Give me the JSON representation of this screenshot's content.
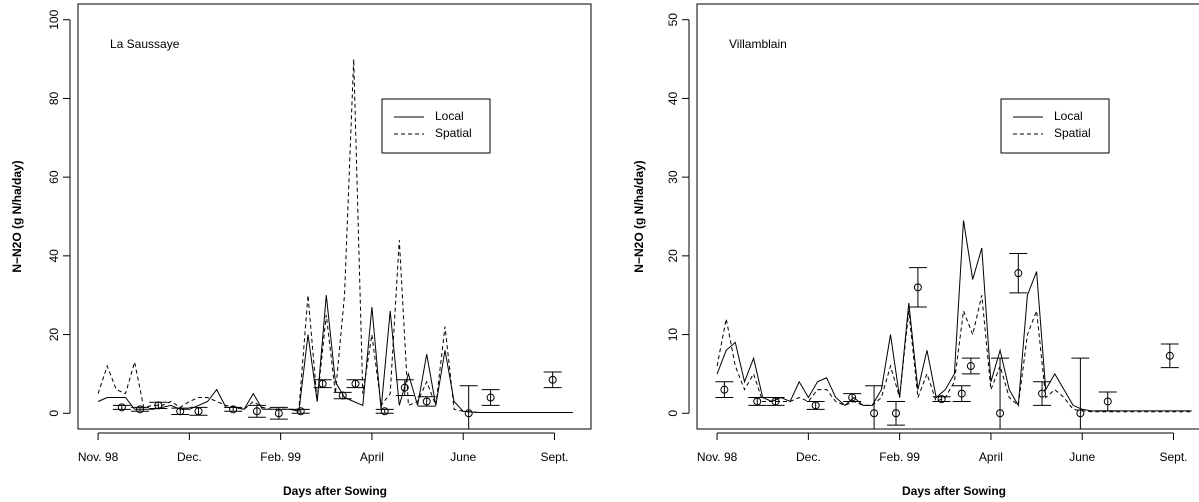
{
  "chart_data": [
    {
      "type": "line",
      "annotation": "La Saussaye",
      "xlabel": "Days after Sowing",
      "ylabel": "N−N2O (g N/ha/day)",
      "legend": "center right",
      "x": [
        0,
        5,
        10,
        15,
        20,
        25,
        30,
        35,
        40,
        45,
        50,
        55,
        60,
        65,
        70,
        75,
        80,
        85,
        90,
        95,
        100,
        105,
        110,
        115,
        120,
        125,
        130,
        135,
        140,
        145,
        150,
        155,
        160,
        165,
        170,
        175,
        180,
        185,
        190,
        195,
        200,
        205,
        210,
        215,
        220,
        225,
        230,
        235,
        240,
        245,
        250,
        255,
        260
      ],
      "series": [
        {
          "name": "Local",
          "color": "#000000",
          "line_style": "solid",
          "values": [
            3,
            4,
            4,
            4,
            1,
            1,
            1,
            1.5,
            2,
            1,
            1,
            2,
            3,
            6,
            1.5,
            1.5,
            1,
            5,
            1,
            1,
            1,
            1,
            0.5,
            20,
            3,
            30,
            8,
            4,
            3,
            2,
            27,
            1,
            26,
            2,
            10,
            2,
            15,
            2,
            16,
            3,
            0.5,
            0.3,
            0.2,
            0.2,
            0.2,
            0.2,
            0.2,
            0.2,
            0.2,
            0.2,
            0.2,
            0.2,
            0.2
          ]
        },
        {
          "name": "Spatial",
          "color": "#000000",
          "line_style": "dashed",
          "values": [
            5,
            12,
            6,
            5,
            13,
            1.5,
            2,
            2,
            3,
            1.5,
            3,
            4,
            4,
            3,
            2,
            1.5,
            1,
            3,
            1.5,
            1,
            1,
            1,
            1,
            30,
            3,
            25,
            5,
            30,
            90,
            5,
            20,
            2,
            5,
            44,
            2,
            3,
            8,
            2,
            22,
            1,
            0.5,
            0.3,
            0.2,
            0.2,
            0.2,
            0.2,
            0.2,
            0.2,
            0.2,
            0.2,
            0.2,
            0.2,
            0.2
          ]
        }
      ],
      "observed": {
        "x": [
          13,
          23,
          33,
          45,
          55,
          74,
          87,
          99,
          111,
          123,
          134,
          141,
          157,
          168,
          180,
          203,
          215,
          249
        ],
        "values": [
          1.5,
          1,
          2,
          0.5,
          0.5,
          1,
          0.5,
          0,
          0.5,
          7.5,
          4.5,
          7.5,
          0.5,
          6.5,
          3,
          0,
          4,
          8.5
        ],
        "errors": [
          0.5,
          0.5,
          0.8,
          0.8,
          1,
          0.5,
          1.5,
          1.5,
          0.5,
          1,
          0.8,
          1,
          0.5,
          2,
          1.2,
          7,
          2,
          2
        ]
      },
      "xlim": [
        -11,
        270
      ],
      "ylim": [
        -4,
        104
      ],
      "xticks": [
        {
          "value": 0,
          "label": "Nov. 98"
        },
        {
          "value": 50,
          "label": "Dec."
        },
        {
          "value": 100,
          "label": "Feb. 99"
        },
        {
          "value": 150,
          "label": "April"
        },
        {
          "value": 200,
          "label": "June"
        },
        {
          "value": 250,
          "label": "Sept."
        }
      ],
      "yticks": [
        0,
        20,
        40,
        60,
        80,
        100
      ]
    },
    {
      "type": "line",
      "annotation": "Villamblain",
      "xlabel": "Days after Sowing",
      "ylabel": "N−N2O (g N/ha/day)",
      "legend": "center right",
      "x": [
        0,
        5,
        10,
        15,
        20,
        25,
        30,
        35,
        40,
        45,
        50,
        55,
        60,
        65,
        70,
        75,
        80,
        85,
        90,
        95,
        100,
        105,
        110,
        115,
        120,
        125,
        130,
        135,
        140,
        145,
        150,
        155,
        160,
        165,
        170,
        175,
        180,
        185,
        190,
        195,
        200,
        205,
        210,
        215,
        220,
        225,
        230,
        235,
        240,
        245,
        250,
        255,
        260
      ],
      "series": [
        {
          "name": "Local",
          "color": "#000000",
          "line_style": "solid",
          "values": [
            5,
            8,
            9,
            4,
            7,
            2,
            1.5,
            2,
            1.5,
            4,
            2,
            4,
            4.5,
            2,
            1,
            2,
            1,
            1,
            3,
            10,
            2,
            14,
            3,
            8,
            2,
            3,
            5,
            24.5,
            17,
            21,
            4,
            8,
            3,
            1,
            15,
            18,
            3,
            5,
            3,
            1,
            0.5,
            0.3,
            0.3,
            0.3,
            0.3,
            0.3,
            0.3,
            0.3,
            0.3,
            0.3,
            0.3,
            0.3,
            0.3
          ]
        },
        {
          "name": "Spatial",
          "color": "#000000",
          "line_style": "dashed",
          "values": [
            6,
            12,
            6,
            3,
            5,
            1.5,
            1.5,
            1.5,
            1.5,
            2,
            1.5,
            3,
            3,
            1.5,
            1,
            1.5,
            1,
            1,
            2,
            6,
            2,
            13,
            2,
            5,
            1.5,
            2,
            4,
            13,
            10,
            15,
            3,
            6,
            2,
            1,
            10,
            13,
            2,
            3,
            2,
            0.5,
            0.3,
            0.2,
            0.2,
            0.2,
            0.2,
            0.2,
            0.2,
            0.2,
            0.2,
            0.2,
            0.2,
            0.2,
            0.2
          ]
        }
      ],
      "observed": {
        "x": [
          4,
          22,
          32,
          54,
          74,
          86,
          98,
          110,
          123,
          134,
          139,
          155,
          165,
          178,
          199,
          214,
          248
        ],
        "values": [
          3,
          1.5,
          1.5,
          1,
          2,
          0,
          0,
          16,
          1.8,
          2.5,
          6,
          0,
          17.8,
          2.5,
          0,
          1.5,
          7.3
        ],
        "errors": [
          1,
          0.5,
          0.5,
          0.5,
          0.5,
          3.5,
          1.5,
          2.5,
          0.3,
          1,
          1,
          7,
          2.5,
          1.5,
          7,
          1.2,
          1.5
        ]
      },
      "xlim": [
        -11,
        270
      ],
      "ylim": [
        -2,
        52
      ],
      "xticks": [
        {
          "value": 0,
          "label": "Nov. 98"
        },
        {
          "value": 50,
          "label": "Dec."
        },
        {
          "value": 100,
          "label": "Feb. 99"
        },
        {
          "value": 150,
          "label": "April"
        },
        {
          "value": 200,
          "label": "June"
        },
        {
          "value": 250,
          "label": "Sept."
        }
      ],
      "yticks": [
        0,
        10,
        20,
        30,
        40,
        50
      ]
    }
  ]
}
